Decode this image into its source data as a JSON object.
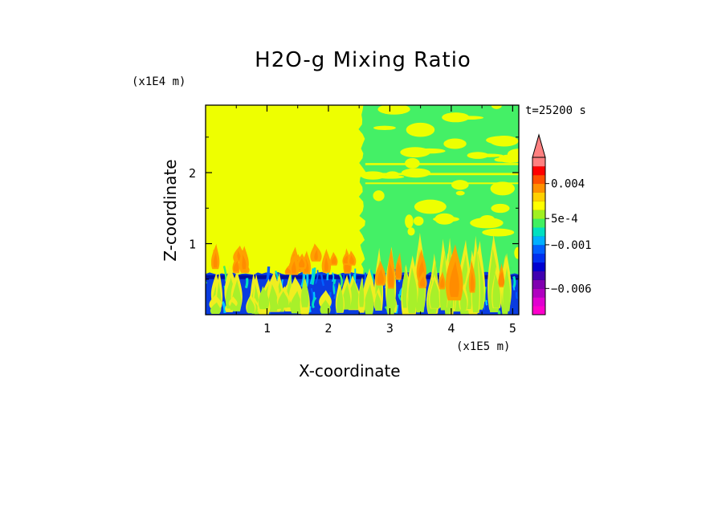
{
  "chart_data": {
    "type": "heatmap",
    "title": "H2O-g Mixing Ratio",
    "xlabel": "X-coordinate",
    "ylabel": "Z-coordinate",
    "x_unit": "(x1E5 m)",
    "y_unit": "(x1E4 m)",
    "time_label": "t=25200 s",
    "xlim": [
      0,
      5.1
    ],
    "ylim": [
      0,
      2.95
    ],
    "x_ticks": [
      1,
      2,
      3,
      4,
      5
    ],
    "y_ticks": [
      1,
      2
    ],
    "x_tick_labels": [
      "1",
      "2",
      "3",
      "4",
      "5"
    ],
    "y_tick_labels": [
      "1",
      "2"
    ],
    "colorbar": {
      "levels": [
        "-0.009",
        "-0.008",
        "-0.007",
        "-0.006",
        "-0.005",
        "-0.004",
        "-0.003",
        "-0.002",
        "-0.001",
        "-5e-4",
        "0",
        "5e-4",
        "0.001",
        "0.002",
        "0.003",
        "0.004",
        "0.005",
        "0.006"
      ],
      "colors": [
        "#ff00cc",
        "#e000d0",
        "#b000c0",
        "#8000b0",
        "#4000b0",
        "#0000d0",
        "#0030f0",
        "#0060ff",
        "#00b0ff",
        "#00e0c0",
        "#40f060",
        "#a0f020",
        "#ffff00",
        "#ffd000",
        "#ff9000",
        "#ff5000",
        "#ff0000",
        "#ff8080"
      ],
      "tick_labels": [
        {
          "label": "0.004",
          "value": 0.004
        },
        {
          "label": "5e-4",
          "value": 0.0005
        },
        {
          "label": "−0.001",
          "value": -0.001
        },
        {
          "label": "−0.006",
          "value": -0.006
        }
      ],
      "extend": "max"
    },
    "regions": [
      {
        "name": "background",
        "value_range": [
          0.0005,
          0.001
        ],
        "color": "#eeff00"
      },
      {
        "name": "moist boundary layer",
        "z_top": 0.58,
        "value_range": [
          -0.004,
          -0.001
        ],
        "color": "#0a3ce0"
      },
      {
        "name": "mixed region",
        "x_start": 2.55,
        "value_range": [
          -0.0005,
          0
        ],
        "color": "#44f066"
      },
      {
        "name": "plumes",
        "value_range": [
          0.002,
          0.004
        ],
        "color": "#ff8c00"
      }
    ]
  }
}
